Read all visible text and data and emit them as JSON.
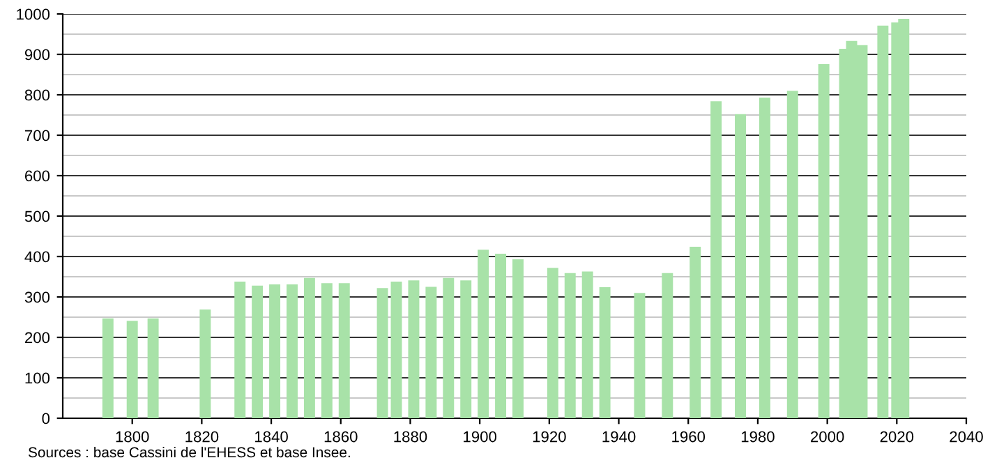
{
  "chart_data": {
    "type": "bar",
    "x": [
      1793,
      1800,
      1806,
      1821,
      1831,
      1836,
      1841,
      1846,
      1851,
      1856,
      1861,
      1872,
      1876,
      1881,
      1886,
      1891,
      1896,
      1901,
      1906,
      1911,
      1921,
      1926,
      1931,
      1936,
      1946,
      1954,
      1962,
      1968,
      1975,
      1982,
      1990,
      1999,
      2005,
      2007,
      2010,
      2016,
      2020,
      2022
    ],
    "values": [
      247,
      241,
      247,
      269,
      338,
      328,
      331,
      331,
      347,
      334,
      334,
      322,
      338,
      341,
      325,
      347,
      341,
      417,
      407,
      393,
      372,
      359,
      363,
      324,
      310,
      359,
      424,
      784,
      752,
      793,
      810,
      876,
      914,
      933,
      923,
      971,
      979,
      988
    ],
    "color": "#a8e2a8",
    "xlim": [
      1780,
      2040
    ],
    "xticks": [
      1800,
      1820,
      1840,
      1860,
      1880,
      1900,
      1920,
      1940,
      1960,
      1980,
      2000,
      2020,
      2040
    ],
    "ylim": [
      0,
      1000
    ],
    "yticks": [
      0,
      100,
      200,
      300,
      400,
      500,
      600,
      700,
      800,
      900,
      1000
    ],
    "grid": "y",
    "annotations": [
      "Sources : base Cassini de l'EHESS et base Insee."
    ]
  }
}
